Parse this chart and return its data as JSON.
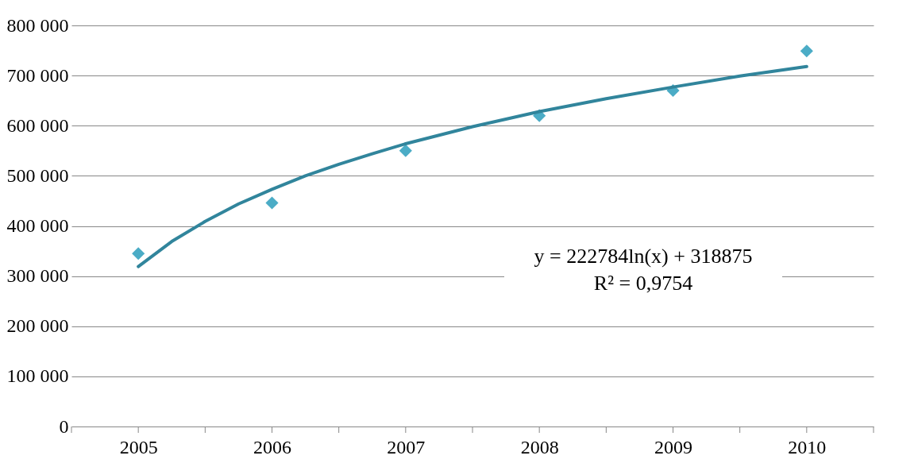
{
  "chart_data": {
    "type": "scatter",
    "marker": "diamond",
    "grid": "y",
    "xlim": [
      2004.5,
      2010.5
    ],
    "xticks": [
      {
        "value": 2004.5,
        "label": null
      },
      2005,
      {
        "value": 2005.5,
        "label": null
      },
      2006,
      {
        "value": 2006.5,
        "label": null
      },
      2007,
      {
        "value": 2007.5,
        "label": null
      },
      2008,
      {
        "value": 2008.5,
        "label": null
      },
      2009,
      {
        "value": 2009.5,
        "label": null
      },
      2010,
      {
        "value": 2010.5,
        "label": null
      }
    ],
    "ylim": [
      0,
      800000
    ],
    "yticks": [
      0,
      {
        "value": 100000,
        "label": "100 000"
      },
      {
        "value": 200000,
        "label": "200 000"
      },
      {
        "value": 300000,
        "label": "300 000"
      },
      {
        "value": 400000,
        "label": "400 000"
      },
      {
        "value": 500000,
        "label": "500 000"
      },
      {
        "value": 600000,
        "label": "600 000"
      },
      {
        "value": 700000,
        "label": "700 000"
      },
      {
        "value": 800000,
        "label": "800 000"
      }
    ],
    "series": [
      {
        "color": "#4bacc6",
        "x": [
          2005,
          2006,
          2007,
          2008,
          2009,
          2010
        ],
        "values": [
          345000,
          446000,
          550000,
          620000,
          670000,
          749000
        ]
      },
      {
        "type": "line",
        "color": "#31859c",
        "line_style": "solid",
        "marker": "none",
        "x": [
          2005,
          2005.25,
          2005.5,
          2005.75,
          2006,
          2006.25,
          2006.5,
          2006.75,
          2007,
          2007.5,
          2008,
          2008.5,
          2009,
          2009.5,
          2010
        ],
        "values": [
          319000,
          369000,
          409000,
          444000,
          473000,
          500000,
          523000,
          544000,
          564000,
          598000,
          628000,
          654000,
          677000,
          699000,
          718000
        ]
      }
    ],
    "annotations": [
      "y = 222784ln(x) + 318875",
      "R² = 0,9754"
    ]
  }
}
